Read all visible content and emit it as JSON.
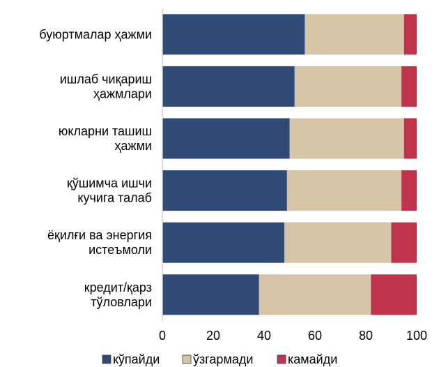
{
  "chart_data": {
    "type": "bar",
    "orientation": "horizontal",
    "stacked": true,
    "categories": [
      [
        "буюртмалар ҳажми"
      ],
      [
        "ишлаб чиқариш",
        "ҳажмлари"
      ],
      [
        "юкларни ташиш",
        "ҳажми"
      ],
      [
        "қўшимча ишчи",
        "кучига талаб"
      ],
      [
        "ёқилғи ва энергия",
        "истеъмоли"
      ],
      [
        "кредит/қарз",
        "тўловлари"
      ]
    ],
    "series": [
      {
        "name": "кўпайди",
        "color": "#2e4a75",
        "values": [
          56,
          52,
          50,
          49,
          48,
          38
        ]
      },
      {
        "name": "ўзгармади",
        "color": "#d5c4a6",
        "values": [
          39,
          42,
          45,
          45,
          42,
          44
        ]
      },
      {
        "name": "камайди",
        "color": "#c0334d",
        "values": [
          5,
          6,
          5,
          6,
          10,
          18
        ]
      }
    ],
    "xlim": [
      0,
      100
    ],
    "xticks": [
      "0",
      "20",
      "40",
      "60",
      "80",
      "100"
    ],
    "legend_position": "bottom",
    "grid": false
  }
}
